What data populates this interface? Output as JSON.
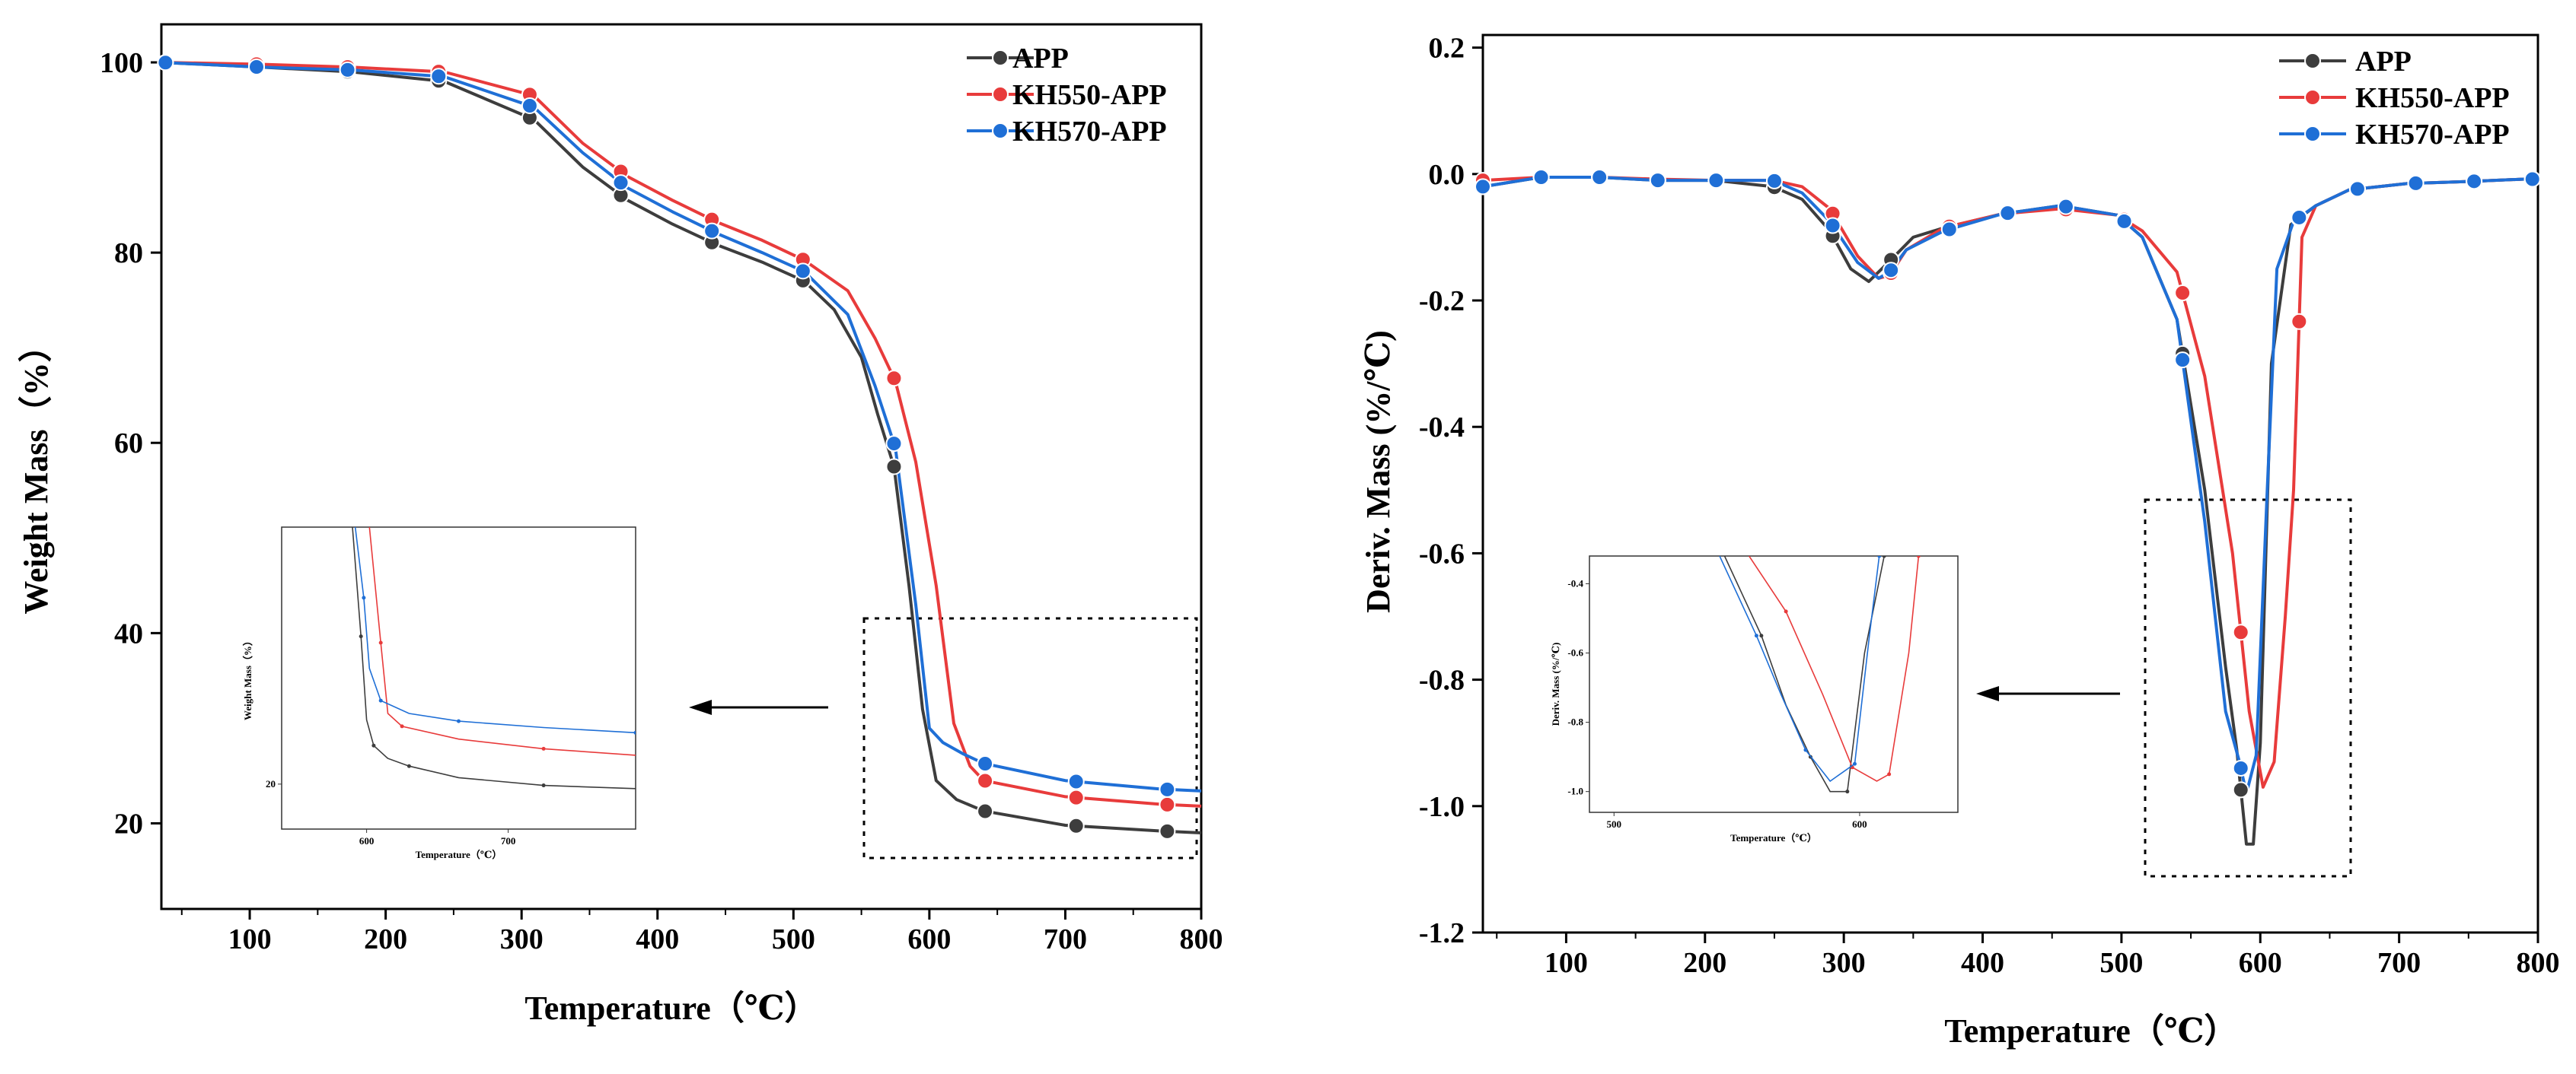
{
  "colors": {
    "APP": "#3d3d3d",
    "KH550-APP": "#e83b3b",
    "KH570-APP": "#1f6fd6"
  },
  "chart_data": [
    {
      "type": "line",
      "title": "",
      "xlabel": "Temperature（℃）",
      "ylabel": "Weight Mass（%）",
      "xlim": [
        35,
        800
      ],
      "ylim": [
        11,
        104
      ],
      "xticks": [
        100,
        200,
        300,
        400,
        500,
        600,
        700,
        800
      ],
      "yticks": [
        20,
        40,
        60,
        80,
        100
      ],
      "legend": "top-right",
      "series": [
        {
          "name": "APP",
          "color": "#3d3d3d",
          "x": [
            35,
            108,
            175,
            243,
            309,
            345,
            378,
            411,
            444,
            477,
            508,
            530,
            550,
            562,
            574,
            585,
            595,
            605,
            620,
            640,
            700,
            770,
            800
          ],
          "y": [
            100,
            99.5,
            99,
            98,
            94,
            89,
            85.5,
            83,
            80.8,
            79,
            77,
            74,
            69,
            63,
            57.5,
            45,
            32,
            24.5,
            22.5,
            21.3,
            19.8,
            19.2,
            19
          ]
        },
        {
          "name": "KH550-APP",
          "color": "#e83b3b",
          "x": [
            35,
            108,
            175,
            243,
            309,
            345,
            378,
            411,
            444,
            477,
            508,
            540,
            560,
            575,
            590,
            605,
            618,
            630,
            640,
            700,
            770,
            800
          ],
          "y": [
            100,
            99.8,
            99.5,
            99,
            96.5,
            91.5,
            88,
            85.5,
            83.2,
            81.3,
            79.2,
            76,
            71,
            66.5,
            58,
            45,
            30.5,
            26,
            24.5,
            22.8,
            22,
            21.8
          ]
        },
        {
          "name": "KH570-APP",
          "color": "#1f6fd6",
          "x": [
            35,
            108,
            175,
            243,
            309,
            345,
            378,
            411,
            444,
            477,
            508,
            540,
            560,
            575,
            590,
            600,
            610,
            625,
            640,
            700,
            770,
            800
          ],
          "y": [
            100,
            99.5,
            99.2,
            98.5,
            95.3,
            90.5,
            86.8,
            84.3,
            82,
            80,
            78,
            73.5,
            66,
            59.5,
            43,
            30,
            28.5,
            27.3,
            26.3,
            24.5,
            23.6,
            23.4
          ]
        }
      ],
      "inset": {
        "xlabel": "Temperature（℃）",
        "ylabel": "Weight Mass（%）",
        "xlim": [
          540,
          790
        ],
        "ylim": [
          13,
          60
        ],
        "xticks": [
          600,
          700
        ],
        "yticks": [
          20
        ],
        "series": [
          {
            "name": "APP",
            "x": [
              590,
              596,
              600,
              605,
              615,
              630,
              665,
              725,
              790
            ],
            "y": [
              60,
              43,
              30,
              26,
              24,
              22.8,
              21,
              19.8,
              19.3
            ]
          },
          {
            "name": "KH550-APP",
            "x": [
              602,
              610,
              615,
              625,
              665,
              725,
              790
            ],
            "y": [
              60,
              42,
              31,
              29,
              27,
              25.5,
              24.5
            ]
          },
          {
            "name": "KH570-APP",
            "x": [
              592,
              598,
              602,
              610,
              630,
              665,
              725,
              790
            ],
            "y": [
              60,
              49,
              38,
              33,
              31,
              29.8,
              28.8,
              28
            ]
          }
        ]
      }
    },
    {
      "type": "line",
      "title": "",
      "xlabel": "Temperature（℃）",
      "ylabel": "Deriv. Mass (%/℃)",
      "xlim": [
        40,
        800
      ],
      "ylim": [
        -1.2,
        0.22
      ],
      "xticks": [
        100,
        200,
        300,
        400,
        500,
        600,
        700,
        800
      ],
      "yticks": [
        -1.2,
        -1.0,
        -0.8,
        -0.6,
        -0.4,
        -0.2,
        0.0,
        0.2
      ],
      "legend": "top-right",
      "series": [
        {
          "name": "APP",
          "color": "#3d3d3d",
          "x": [
            40,
            82,
            124,
            165,
            207,
            249,
            270,
            290,
            305,
            318,
            332,
            350,
            372,
            414,
            456,
            497,
            515,
            540,
            560,
            575,
            583,
            590,
            595,
            600,
            608,
            622,
            640,
            664,
            706,
            748,
            790,
            800
          ],
          "y": [
            -0.02,
            -0.005,
            -0.005,
            -0.01,
            -0.01,
            -0.02,
            -0.04,
            -0.09,
            -0.15,
            -0.17,
            -0.14,
            -0.1,
            -0.085,
            -0.063,
            -0.05,
            -0.065,
            -0.1,
            -0.23,
            -0.5,
            -0.78,
            -0.91,
            -1.06,
            -1.06,
            -0.9,
            -0.3,
            -0.08,
            -0.05,
            -0.025,
            -0.015,
            -0.012,
            -0.008,
            -0.008
          ]
        },
        {
          "name": "KH550-APP",
          "color": "#e83b3b",
          "x": [
            40,
            82,
            124,
            165,
            207,
            249,
            270,
            290,
            310,
            325,
            333,
            345,
            372,
            414,
            456,
            497,
            515,
            540,
            560,
            580,
            592,
            602,
            610,
            618,
            624,
            630,
            640,
            664,
            706,
            748,
            790,
            800
          ],
          "y": [
            -0.01,
            -0.005,
            -0.005,
            -0.008,
            -0.01,
            -0.01,
            -0.02,
            -0.055,
            -0.13,
            -0.165,
            -0.16,
            -0.12,
            -0.085,
            -0.063,
            -0.055,
            -0.065,
            -0.09,
            -0.155,
            -0.32,
            -0.6,
            -0.85,
            -0.97,
            -0.93,
            -0.7,
            -0.5,
            -0.1,
            -0.05,
            -0.025,
            -0.015,
            -0.012,
            -0.008,
            -0.008
          ]
        },
        {
          "name": "KH570-APP",
          "color": "#1f6fd6",
          "x": [
            40,
            82,
            124,
            165,
            207,
            249,
            270,
            290,
            310,
            325,
            333,
            345,
            372,
            414,
            456,
            497,
            515,
            540,
            560,
            575,
            585,
            590,
            597,
            605,
            612,
            624,
            640,
            664,
            706,
            748,
            790,
            800
          ],
          "y": [
            -0.02,
            -0.005,
            -0.005,
            -0.01,
            -0.01,
            -0.01,
            -0.03,
            -0.075,
            -0.14,
            -0.165,
            -0.155,
            -0.12,
            -0.09,
            -0.063,
            -0.05,
            -0.065,
            -0.1,
            -0.23,
            -0.55,
            -0.85,
            -0.93,
            -0.98,
            -0.92,
            -0.5,
            -0.15,
            -0.075,
            -0.05,
            -0.025,
            -0.015,
            -0.012,
            -0.008,
            -0.008
          ]
        }
      ],
      "inset": {
        "xlabel": "Temperature（℃）",
        "ylabel": "Deriv. Mass (%/℃)",
        "xlim": [
          490,
          640
        ],
        "ylim": [
          -1.06,
          -0.32
        ],
        "xticks": [
          500,
          600
        ],
        "yticks": [
          -1.0,
          -0.8,
          -0.6,
          -0.4
        ],
        "series": [
          {
            "name": "APP",
            "x": [
              545,
              560,
              570,
              580,
              588,
              595,
              602,
              610
            ],
            "y": [
              -0.32,
              -0.55,
              -0.75,
              -0.9,
              -1.0,
              -1.0,
              -0.6,
              -0.32
            ]
          },
          {
            "name": "KH550-APP",
            "x": [
              555,
              570,
              585,
              597,
              607,
              612,
              620,
              624
            ],
            "y": [
              -0.32,
              -0.48,
              -0.72,
              -0.93,
              -0.97,
              -0.95,
              -0.6,
              -0.32
            ]
          },
          {
            "name": "KH570-APP",
            "x": [
              543,
              558,
              568,
              578,
              588,
              598,
              604,
              608
            ],
            "y": [
              -0.32,
              -0.55,
              -0.72,
              -0.88,
              -0.97,
              -0.92,
              -0.55,
              -0.32
            ]
          }
        ]
      }
    }
  ]
}
